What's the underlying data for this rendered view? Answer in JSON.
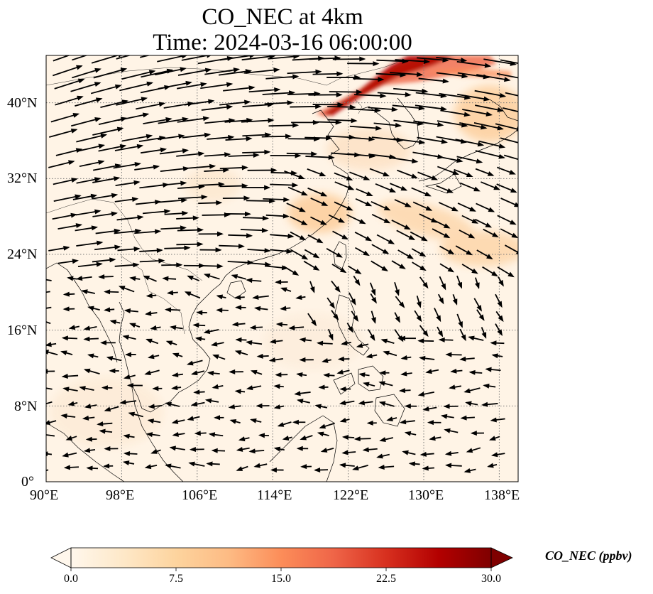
{
  "title": {
    "line1": "CO_NEC at 4km",
    "line2": "Time: 2024-03-16 06:00:00"
  },
  "map": {
    "lon_range": [
      90,
      140
    ],
    "lat_range": [
      0,
      45
    ],
    "lon_ticks": [
      "90°E",
      "98°E",
      "106°E",
      "114°E",
      "122°E",
      "130°E",
      "138°E"
    ],
    "lat_ticks": [
      "0°",
      "8°N",
      "16°N",
      "24°N",
      "32°N",
      "40°N"
    ],
    "gridlines": "dotted",
    "field": "CO_NEC",
    "vectors": "wind arrows"
  },
  "colorbar": {
    "label": "CO_NEC (ppbv)",
    "ticks": [
      "0.0",
      "7.5",
      "15.0",
      "22.5",
      "30.0"
    ],
    "min": 0,
    "max": 30,
    "colormap": [
      "#fff7ec",
      "#fee8c8",
      "#fdd49e",
      "#fdbb84",
      "#fc8d59",
      "#ef6548",
      "#d7301f",
      "#b30000",
      "#7f0000"
    ],
    "extend": "both"
  },
  "chart_data": {
    "type": "heatmap",
    "title": "CO_NEC at 4km",
    "subtitle": "Time: 2024-03-16 06:00:00",
    "xlabel": "",
    "ylabel": "",
    "xlim": [
      90,
      140
    ],
    "ylim": [
      0,
      45
    ],
    "units": "ppbv",
    "plumes": [
      {
        "lon": [
          118,
          128,
          140
        ],
        "lat": [
          39,
          43,
          45
        ],
        "max_value": 30
      },
      {
        "lon": [
          116,
          120,
          124
        ],
        "lat": [
          28,
          30,
          28
        ],
        "max_value": 8
      },
      {
        "lon": [
          128,
          134,
          140
        ],
        "lat": [
          29,
          27,
          24
        ],
        "max_value": 7
      }
    ]
  }
}
